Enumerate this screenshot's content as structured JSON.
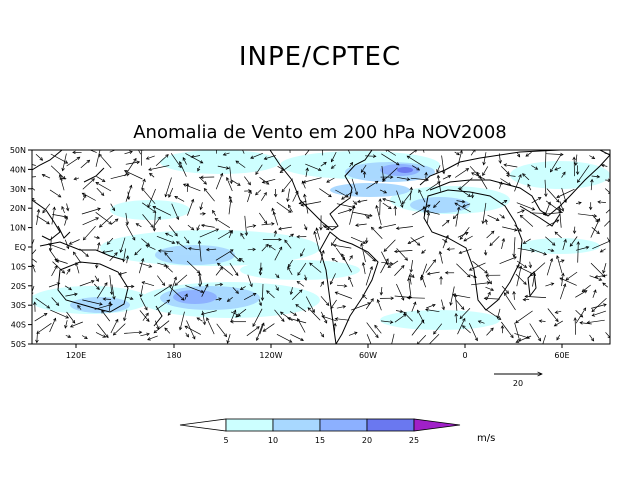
{
  "header": {
    "organization": "INPE/CPTEC"
  },
  "map": {
    "title": "Anomalia de Vento em 200 hPa NOV2008",
    "variable": "wind anomaly",
    "level": "200 hPa",
    "period": "NOV2008",
    "lat_labels": [
      "50N",
      "40N",
      "30N",
      "20N",
      "10N",
      "EQ",
      "10S",
      "20S",
      "30S",
      "40S",
      "50S"
    ],
    "lon_labels": [
      "120E",
      "180",
      "120W",
      "60W",
      "0",
      "60E"
    ],
    "reference_vector": {
      "label": "20",
      "value": 20,
      "unit": "m/s"
    }
  },
  "colorbar": {
    "ticks": [
      "5",
      "10",
      "15",
      "20",
      "25"
    ],
    "unit": "m/s",
    "colors": [
      "#ffffff",
      "#ccffff",
      "#a8d8ff",
      "#8cb0ff",
      "#6a78f0",
      "#a020c8"
    ]
  }
}
